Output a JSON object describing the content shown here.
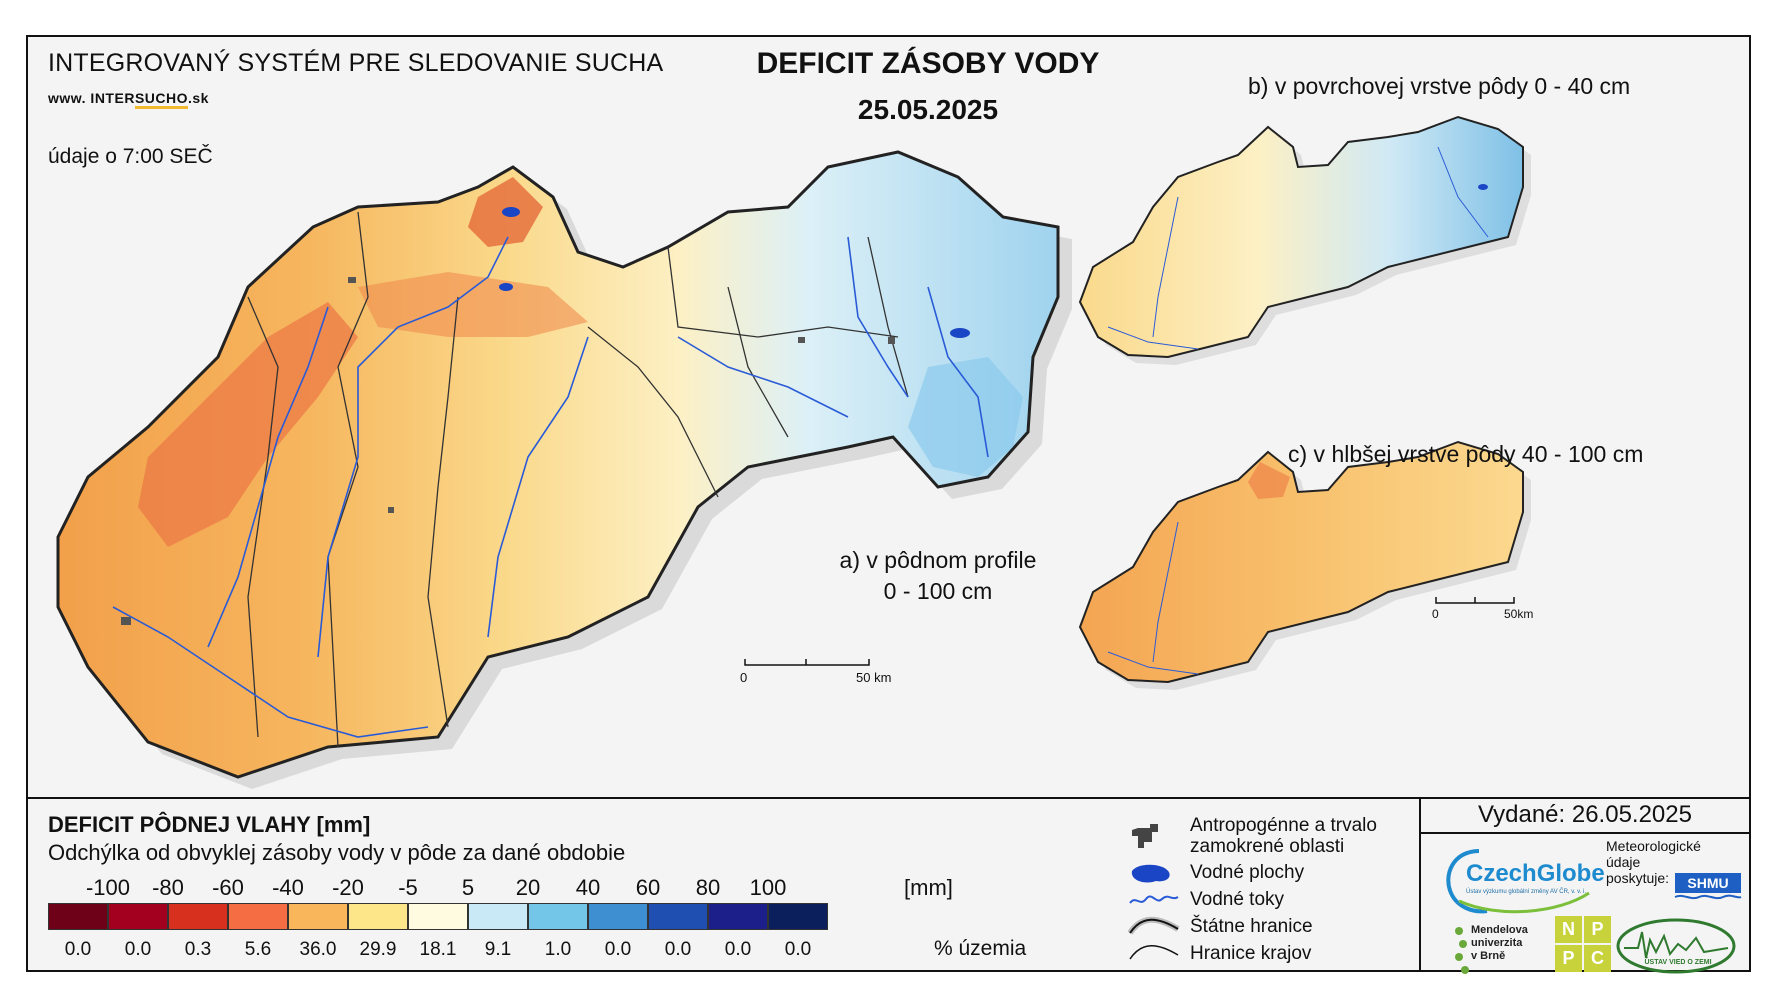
{
  "header": {
    "system_title": "INTEGROVANÝ SYSTÉM PRE SLEDOVANIE SUCHA",
    "web_prefix": "www. INTER",
    "web_accent": "SUCHO",
    "web_suffix": ".sk",
    "data_note": "údaje o 7:00 SEČ",
    "main_title": "DEFICIT ZÁSOBY VODY",
    "date": "25.05.2025"
  },
  "maps": {
    "a_label_line1": "a) v pôdnom profile",
    "a_label_line2": "0 - 100 cm",
    "b_label": "b) v povrchovej vrstve pôdy 0 - 40 cm",
    "c_label": "c) v hlbšej vrstve pôdy 40 - 100 cm",
    "scale_main_start": "0",
    "scale_main_end": "50 km",
    "scale_small_start": "0",
    "scale_small_end": "50km"
  },
  "legend": {
    "title": "DEFICIT PÔDNEJ VLAHY [mm]",
    "subtitle": "Odchýlka od obvyklej zásoby vody v pôde za dané obdobie",
    "ticks": [
      "-100",
      "-80",
      "-60",
      "-40",
      "-20",
      "-5",
      "5",
      "20",
      "40",
      "60",
      "80",
      "100"
    ],
    "unit": "[mm]",
    "classes": [
      {
        "color": "#6e0018",
        "pct": "0.0"
      },
      {
        "color": "#a3001f",
        "pct": "0.0"
      },
      {
        "color": "#d7301f",
        "pct": "0.3"
      },
      {
        "color": "#f46d43",
        "pct": "5.6"
      },
      {
        "color": "#f9b65a",
        "pct": "36.0"
      },
      {
        "color": "#fde68a",
        "pct": "29.9"
      },
      {
        "color": "#fffbe0",
        "pct": "18.1"
      },
      {
        "color": "#c9e9f6",
        "pct": "9.1"
      },
      {
        "color": "#74c6e8",
        "pct": "1.0"
      },
      {
        "color": "#3d8fd1",
        "pct": "0.0"
      },
      {
        "color": "#1f4fb0",
        "pct": "0.0"
      },
      {
        "color": "#1c1f8a",
        "pct": "0.0"
      },
      {
        "color": "#0b1f5c",
        "pct": "0.0"
      }
    ],
    "pct_unit": "% územia"
  },
  "symbols": [
    {
      "icon": "urban-area-icon",
      "label": "Antropogénne a trvalo zamokrené oblasti"
    },
    {
      "icon": "water-body-icon",
      "label": "Vodné plochy"
    },
    {
      "icon": "river-icon",
      "label": "Vodné toky"
    },
    {
      "icon": "state-border-icon",
      "label": "Štátne hranice"
    },
    {
      "icon": "region-border-icon",
      "label": "Hranice krajov"
    }
  ],
  "credits": {
    "issued": "Vydané: 26.05.2025",
    "czechglobe": "CzechGlobe",
    "czechglobe_sub": "Ústav výzkumu globální změny AV ČR, v. v. i.",
    "meteo_line1": "Meteorologické",
    "meteo_line2": "údaje",
    "meteo_line3": "poskytuje:",
    "shmu": "SHMU",
    "mendel_line1": "Mendelova",
    "mendel_line2": "univerzita",
    "mendel_line3": "v Brně",
    "nppc": [
      "N",
      "P",
      "P",
      "C"
    ],
    "uvz": "ÚSTAV VIED O ZEMI"
  },
  "colors": {
    "frame": "#111111",
    "background": "#f4f4f4",
    "river": "#2a5bd7",
    "border": "#222222",
    "shadow": "#cfcfcf"
  }
}
